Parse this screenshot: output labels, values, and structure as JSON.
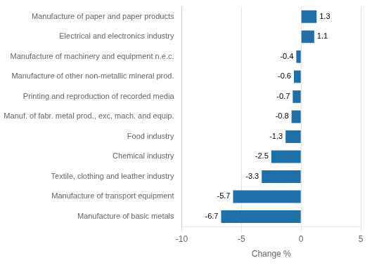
{
  "chart_data": {
    "type": "bar",
    "orientation": "horizontal",
    "categories": [
      "Manufacture of basic metals",
      "Manufacture of transport equipment",
      "Textile, clothing and leather industry",
      "Chemical industry",
      "Food industry",
      "Manuf. of fabr. metal prod., exc. mach. and equip.",
      "Printing and reproduction of recorded media",
      "Manufacture of other non-metallic mineral prod.",
      "Manufacture of machinery and equipment n.e.c.",
      "Electrical and electronics industry",
      "Manufacture of paper and paper products"
    ],
    "values": [
      -6.7,
      -5.7,
      -3.3,
      -2.5,
      -1.3,
      -0.8,
      -0.7,
      -0.6,
      -0.4,
      1.1,
      1.3
    ],
    "color": "#1F6FA8",
    "xlabel": "Change %",
    "xlim": [
      -10,
      5
    ],
    "xticks": [
      -10,
      -5,
      0,
      5
    ],
    "grid": true,
    "data_labels": true
  }
}
